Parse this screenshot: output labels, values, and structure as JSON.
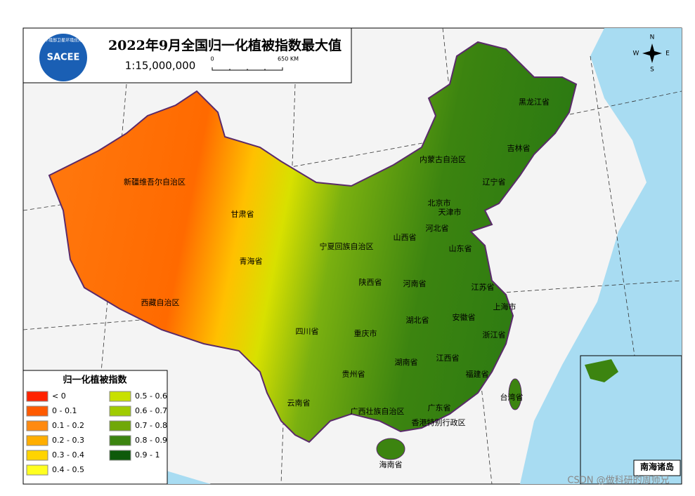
{
  "header": {
    "title": "2022年9月全国归一化植被指数最大值",
    "scale": "1:15,000,000",
    "scalebar": [
      "0",
      "650 KM"
    ],
    "logo": "SACEE",
    "logo_org": "生态环境部卫星环境应用中心"
  },
  "compass": {
    "n": "N",
    "s": "S",
    "w": "W",
    "e": "E"
  },
  "provinces": [
    "新疆维吾尔自治区",
    "甘肃省",
    "青海省",
    "西藏自治区",
    "内蒙古自治区",
    "黑龙江省",
    "吉林省",
    "辽宁省",
    "北京市",
    "天津市",
    "河北省",
    "山西省",
    "山东省",
    "宁夏回族自治区",
    "陕西省",
    "河南省",
    "江苏省",
    "上海市",
    "湖北省",
    "安徽省",
    "四川省",
    "重庆市",
    "浙江省",
    "湖南省",
    "江西省",
    "贵州省",
    "福建省",
    "云南省",
    "广西壮族自治区",
    "广东省",
    "香港特别行政区",
    "台湾省",
    "海南省"
  ],
  "legend": {
    "title": "归一化植被指数",
    "items": [
      {
        "label": "< 0",
        "color": "#ff2200"
      },
      {
        "label": "0 - 0.1",
        "color": "#ff5a00"
      },
      {
        "label": "0.1 - 0.2",
        "color": "#ff8a10"
      },
      {
        "label": "0.2 - 0.3",
        "color": "#ffae00"
      },
      {
        "label": "0.3 - 0.4",
        "color": "#ffd400"
      },
      {
        "label": "0.4 - 0.5",
        "color": "#ffff20"
      },
      {
        "label": "0.5 - 0.6",
        "color": "#c8e000"
      },
      {
        "label": "0.6 - 0.7",
        "color": "#a0cc00"
      },
      {
        "label": "0.7 - 0.8",
        "color": "#70a808"
      },
      {
        "label": "0.8 - 0.9",
        "color": "#3c8410"
      },
      {
        "label": "0.9 - 1",
        "color": "#0e5a0a"
      }
    ]
  },
  "inset": {
    "title": "南海诸岛"
  },
  "watermark": "CSDN @做科研的周师兄"
}
